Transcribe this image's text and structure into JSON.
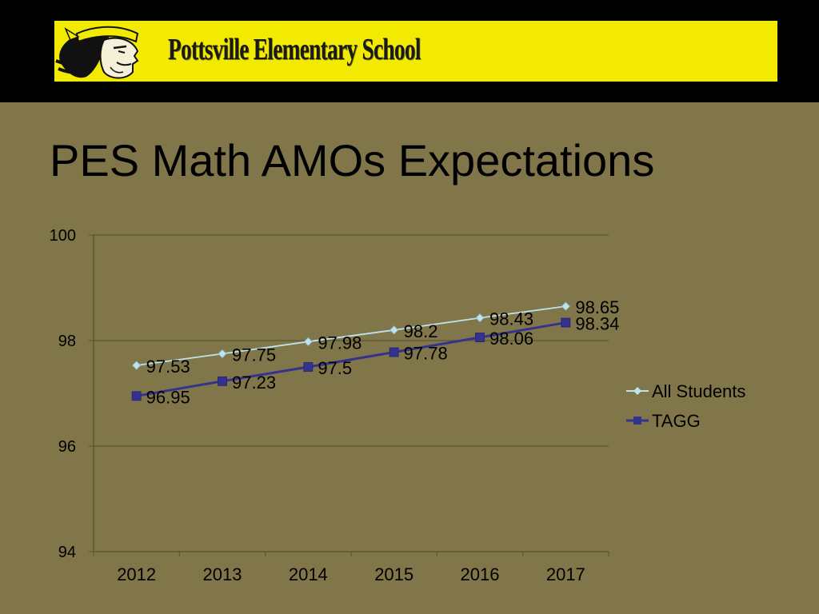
{
  "banner": {
    "school_name": "Pottsville Elementary School"
  },
  "slide": {
    "title": "PES Math AMOs Expectations"
  },
  "colors": {
    "background": "#817649",
    "topbar": "#000000",
    "banner": "#f2ea00",
    "all_students": "#bfe3ee",
    "tagg": "#33338f"
  },
  "chart_data": {
    "type": "line",
    "title": "",
    "xlabel": "",
    "ylabel": "",
    "categories": [
      "2012",
      "2013",
      "2014",
      "2015",
      "2016",
      "2017"
    ],
    "ylim": [
      94,
      100
    ],
    "yticks": [
      "94",
      "96",
      "98",
      "100"
    ],
    "grid": true,
    "legend": "right",
    "series": [
      {
        "name": "All Students",
        "marker": "diamond",
        "values": [
          97.53,
          97.75,
          97.98,
          98.2,
          98.43,
          98.65
        ],
        "labels": [
          "97.53",
          "97.75",
          "97.98",
          "98.2",
          "98.43",
          "98.65"
        ]
      },
      {
        "name": "TAGG",
        "marker": "square",
        "values": [
          96.95,
          97.23,
          97.5,
          97.78,
          98.06,
          98.34
        ],
        "labels": [
          "96.95",
          "97.23",
          "97.5",
          "97.78",
          "98.06",
          "98.34"
        ]
      }
    ]
  }
}
